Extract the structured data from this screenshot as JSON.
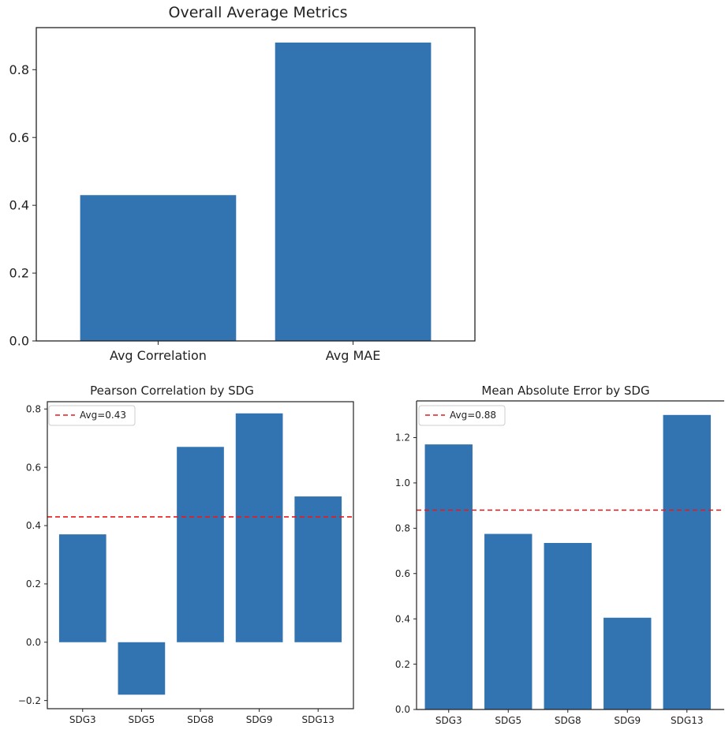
{
  "chart_data": [
    {
      "type": "bar",
      "title": "Overall Average Metrics",
      "categories": [
        "Avg Correlation",
        "Avg MAE"
      ],
      "values": [
        0.43,
        0.88
      ],
      "yticks": [
        "0.0",
        "0.2",
        "0.4",
        "0.6",
        "0.8"
      ],
      "ylim": [
        0,
        0.924
      ],
      "color": "#3274b2",
      "grid": false
    },
    {
      "type": "bar",
      "title": "Pearson Correlation by SDG",
      "categories": [
        "SDG3",
        "SDG5",
        "SDG8",
        "SDG9",
        "SDG13"
      ],
      "values": [
        0.37,
        -0.18,
        0.67,
        0.785,
        0.5
      ],
      "yticks": [
        "−0.2",
        "0.0",
        "0.2",
        "0.4",
        "0.6",
        "0.8"
      ],
      "ylim": [
        -0.228,
        0.825
      ],
      "reference_line": {
        "value": 0.43,
        "label": "Avg=0.43",
        "color": "#e8191b",
        "style": "dashed"
      },
      "legend": "top-left",
      "color": "#3274b2",
      "grid": false
    },
    {
      "type": "bar",
      "title": "Mean Absolute Error by SDG",
      "categories": [
        "SDG3",
        "SDG5",
        "SDG8",
        "SDG9",
        "SDG13"
      ],
      "values": [
        1.17,
        0.775,
        0.735,
        0.405,
        1.3
      ],
      "yticks": [
        "0.0",
        "0.2",
        "0.4",
        "0.6",
        "0.8",
        "1.0",
        "1.2"
      ],
      "ylim": [
        0,
        1.362
      ],
      "reference_line": {
        "value": 0.88,
        "label": "Avg=0.88",
        "color": "#e8191b",
        "style": "dashed"
      },
      "legend": "top-left",
      "color": "#3274b2",
      "grid": false
    }
  ]
}
